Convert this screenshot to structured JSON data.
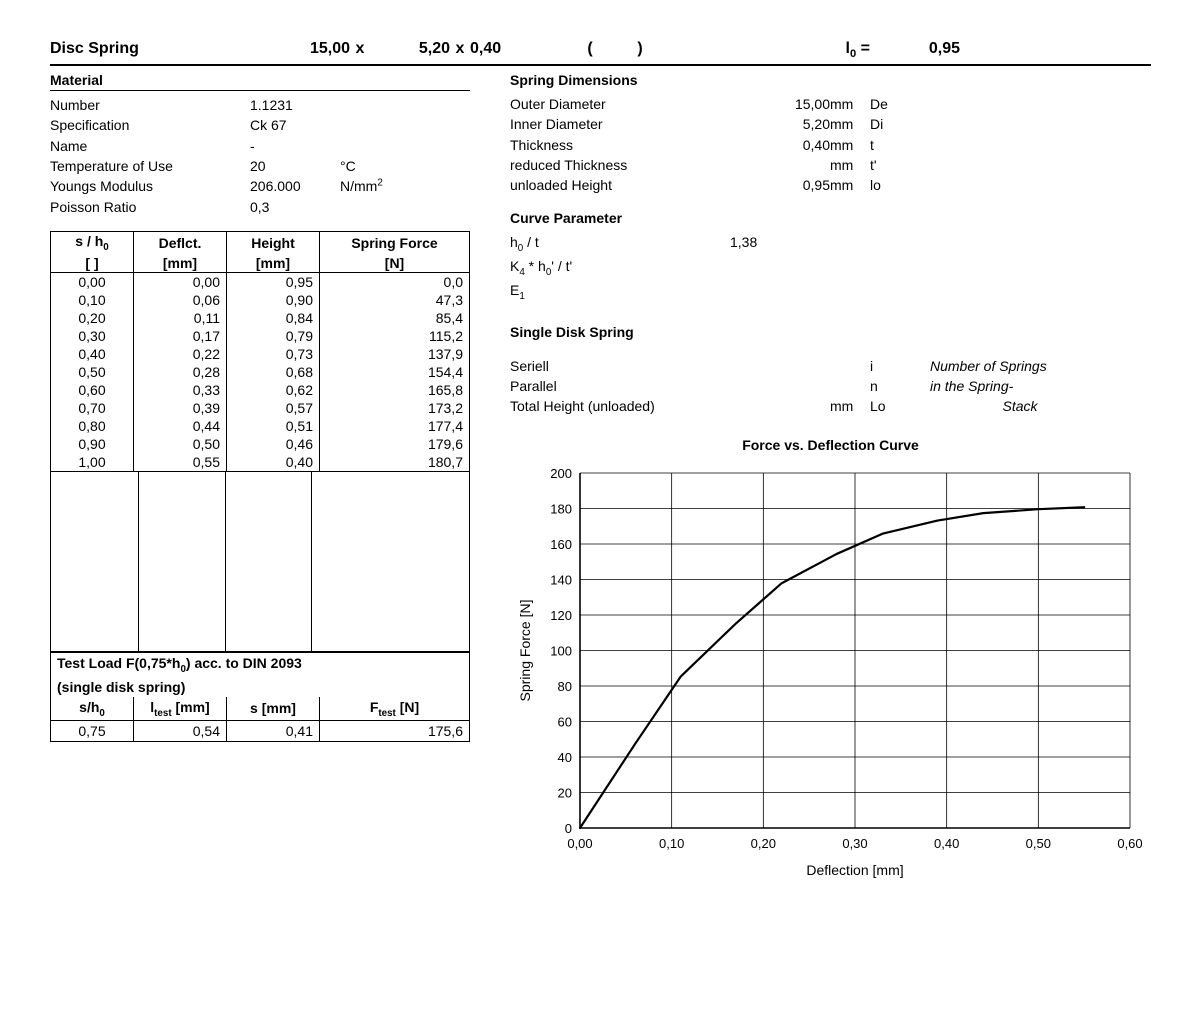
{
  "header": {
    "title": "Disc Spring",
    "d1": "15,00",
    "x1": "x",
    "d2": "5,20",
    "x2": "x",
    "d3": "0,40",
    "paren_l": "(",
    "paren_r": ")",
    "lo_label": "l₀ =",
    "lo_value": "0,95"
  },
  "material": {
    "title": "Material",
    "number_l": "Number",
    "number_v": "1.1231",
    "spec_l": "Specification",
    "spec_v": "Ck 67",
    "name_l": "Name",
    "name_v": "-",
    "temp_l": "Temperature of Use",
    "temp_v": "20",
    "temp_u": "°C",
    "ym_l": "Youngs Modulus",
    "ym_v": "206.000",
    "ym_u": "N/mm²",
    "pr_l": "Poisson Ratio",
    "pr_v": "0,3"
  },
  "dims": {
    "title": "Spring Dimensions",
    "od_l": "Outer Diameter",
    "od_v": "15,00",
    "od_u": "mm",
    "od_s": "De",
    "id_l": "Inner Diameter",
    "id_v": "5,20",
    "id_u": "mm",
    "id_s": "Di",
    "t_l": "Thickness",
    "t_v": "0,40",
    "t_u": "mm",
    "t_s": "t",
    "rt_l": "reduced Thickness",
    "rt_v": "",
    "rt_u": "mm",
    "rt_s": "t'",
    "uh_l": "unloaded Height",
    "uh_v": "0,95",
    "uh_u": "mm",
    "uh_s": "lo"
  },
  "curve": {
    "title": "Curve Parameter",
    "r1_l": "h₀ / t",
    "r1_v": "1,38",
    "r2_l": "K₄ * h₀' / t'",
    "r3_l": "E₁"
  },
  "single": {
    "title": "Single Disk Spring",
    "ser_l": "Seriell",
    "ser_s": "i",
    "par_l": "Parallel",
    "par_s": "n",
    "th_l": "Total Height (unloaded)",
    "th_u": "mm",
    "th_s": "Lo",
    "note1": "Number of Springs",
    "note2": "in the Spring-",
    "note3": "Stack"
  },
  "table": {
    "h1": "s / h₀",
    "h2": "Deflct.",
    "h3": "Height",
    "h4": "Spring Force",
    "u1": "[ ]",
    "u2": "[mm]",
    "u3": "[mm]",
    "u4": "[N]",
    "rows": [
      [
        "0,00",
        "0,00",
        "0,95",
        "0,0"
      ],
      [
        "0,10",
        "0,06",
        "0,90",
        "47,3"
      ],
      [
        "0,20",
        "0,11",
        "0,84",
        "85,4"
      ],
      [
        "0,30",
        "0,17",
        "0,79",
        "115,2"
      ],
      [
        "0,40",
        "0,22",
        "0,73",
        "137,9"
      ],
      [
        "0,50",
        "0,28",
        "0,68",
        "154,4"
      ],
      [
        "0,60",
        "0,33",
        "0,62",
        "165,8"
      ],
      [
        "0,70",
        "0,39",
        "0,57",
        "173,2"
      ],
      [
        "0,80",
        "0,44",
        "0,51",
        "177,4"
      ],
      [
        "0,90",
        "0,50",
        "0,46",
        "179,6"
      ],
      [
        "1,00",
        "0,55",
        "0,40",
        "180,7"
      ]
    ]
  },
  "test": {
    "title1": "Test Load F(0,75*h₀) acc. to DIN 2093",
    "title2": "(single disk spring)",
    "h1": "s/h₀",
    "h2": "lₜₑₛₜ [mm]",
    "h3": "s [mm]",
    "h4": "Fₜₑₛₜ [N]",
    "r": [
      "0,75",
      "0,54",
      "0,41",
      "175,6"
    ]
  },
  "chart": {
    "title": "Force vs. Deflection Curve",
    "xlabel": "Deflection [mm]",
    "ylabel": "Spring Force [N]",
    "xlim": [
      0,
      0.6
    ],
    "xtick_step": 0.1,
    "xticks": [
      "0,00",
      "0,10",
      "0,20",
      "0,30",
      "0,40",
      "0,50",
      "0,60"
    ],
    "ylim": [
      0,
      200
    ],
    "ytick_step": 20,
    "yticks": [
      "0",
      "20",
      "40",
      "60",
      "80",
      "100",
      "120",
      "140",
      "160",
      "180",
      "200"
    ],
    "line_color": "#000000",
    "line_width": 2.2,
    "grid_color": "#000000",
    "grid_width": 0.8,
    "background": "#ffffff",
    "tick_fontsize": 13,
    "label_fontsize": 14,
    "points": [
      [
        0.0,
        0.0
      ],
      [
        0.06,
        47.3
      ],
      [
        0.11,
        85.4
      ],
      [
        0.17,
        115.2
      ],
      [
        0.22,
        137.9
      ],
      [
        0.28,
        154.4
      ],
      [
        0.33,
        165.8
      ],
      [
        0.39,
        173.2
      ],
      [
        0.44,
        177.4
      ],
      [
        0.5,
        179.6
      ],
      [
        0.55,
        180.7
      ]
    ]
  }
}
